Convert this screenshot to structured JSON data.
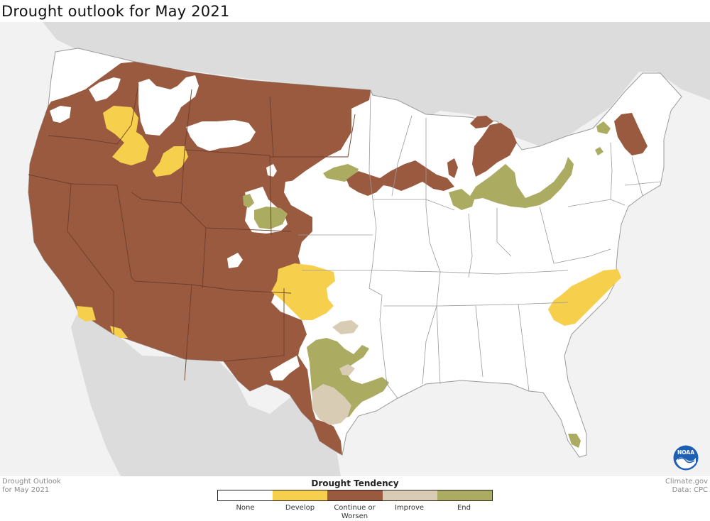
{
  "title": "Drought outlook for May 2021",
  "footer": {
    "left_line1": "Drought Outlook",
    "left_line2": "for May 2021",
    "right_line1": "Climate.gov",
    "right_line2": "Data: CPC"
  },
  "legend": {
    "title": "Drought Tendency",
    "categories": [
      {
        "label": "None",
        "color": "#ffffff"
      },
      {
        "label": "Develop",
        "color": "#f6d04d"
      },
      {
        "label": "Continue or Worsen",
        "color": "#9a5a40"
      },
      {
        "label": "Improve",
        "color": "#d9ccb4"
      },
      {
        "label": "End",
        "color": "#abab62"
      }
    ]
  },
  "logo": "NOAA",
  "colors": {
    "background": "#f2f2f2",
    "land_other": "#dcdcdc",
    "state_border": "#9a9a9a",
    "state_border_brown": "#6d3d2a"
  }
}
